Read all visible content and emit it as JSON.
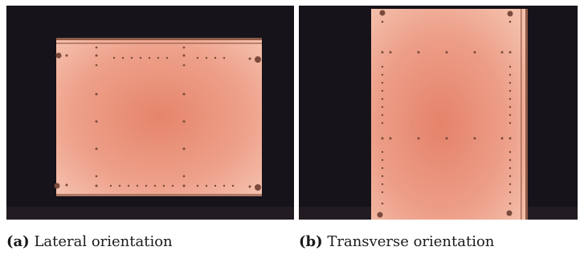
{
  "figure": {
    "panels": [
      {
        "label": "(a)",
        "caption": "Lateral orientation"
      },
      {
        "label": "(b)",
        "caption": "Transverse orientation"
      }
    ]
  },
  "colors": {
    "background_dark": "#15121a",
    "plate_center": "#e58a70",
    "plate_edge": "#f2b49d",
    "hole": "#7a4a3c",
    "rail": "#8e5a48"
  }
}
